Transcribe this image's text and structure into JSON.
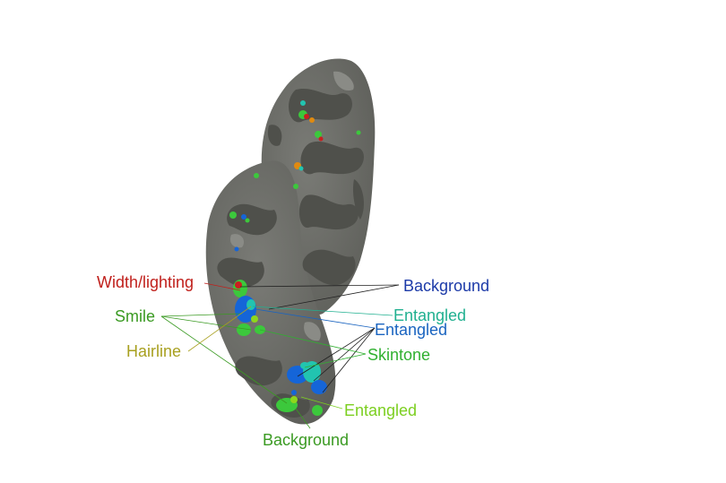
{
  "labels": {
    "width_lighting": {
      "text": "Width/lighting",
      "color": "#c0201c"
    },
    "smile": {
      "text": "Smile",
      "color": "#3a9a22"
    },
    "hairline": {
      "text": "Hairline",
      "color": "#a8a020"
    },
    "background_blue": {
      "text": "Background",
      "color": "#1c3aa8"
    },
    "entangled_teal": {
      "text": "Entangled",
      "color": "#20b090"
    },
    "entangled_blue": {
      "text": "Entangled",
      "color": "#1a64c0"
    },
    "skintone": {
      "text": "Skintone",
      "color": "#30b030"
    },
    "entangled_green": {
      "text": "Entangled",
      "color": "#7ccf20"
    },
    "background_green": {
      "text": "Background",
      "color": "#3a9a22"
    }
  },
  "colors": {
    "surface_base": "#6e6f6a",
    "surface_light": "#8a8b86",
    "surface_dark": "#555651",
    "blob_blue": "#1565d8",
    "blob_teal": "#22c4b0",
    "blob_green": "#3cc83c",
    "blob_lime": "#8fd61c",
    "blob_red": "#c82020",
    "blob_orange": "#e08a10"
  }
}
